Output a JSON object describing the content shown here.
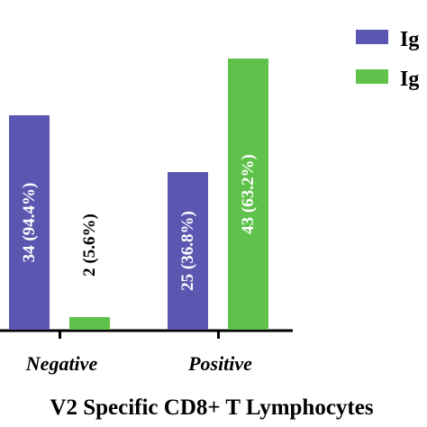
{
  "chart_data": {
    "type": "bar",
    "categories": [
      "Negative",
      "Positive"
    ],
    "series": [
      {
        "name": "Ig",
        "color": "#5b57b0",
        "values": [
          34,
          25
        ],
        "labels": [
          "34 (94.4%)",
          "25 (36.8%)"
        ]
      },
      {
        "name": "Ig",
        "color": "#5fc24a",
        "values": [
          2,
          43
        ],
        "labels": [
          "2 (5.6%)",
          "43 (63.2%)"
        ]
      }
    ],
    "xlabel": "V2 Specific CD8+ T Lymphocytes",
    "ylim": [
      0,
      45
    ],
    "grid": false,
    "legend": "top-right"
  }
}
